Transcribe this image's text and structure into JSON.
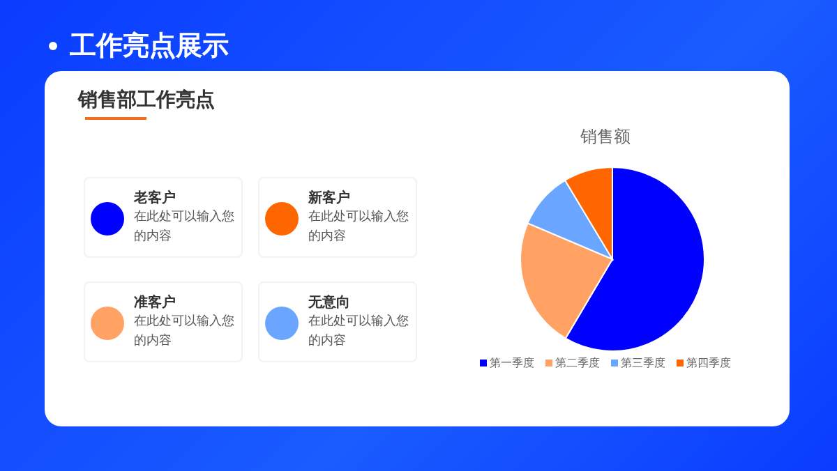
{
  "chart_data": {
    "type": "pie",
    "title": "销售额",
    "categories": [
      "第一季度",
      "第二季度",
      "第三季度",
      "第四季度"
    ],
    "values": [
      58.5,
      22.9,
      10,
      8.6
    ],
    "colors": [
      "#0000ff",
      "#ffa264",
      "#6aa5ff",
      "#ff6600"
    ],
    "legend": "bottom",
    "annotations": [
      "工作亮点展示",
      "销售部工作亮点",
      "老客户",
      "在此处可以输入您的内容",
      "新客户",
      "在此处可以输入您的内容",
      "准客户",
      "在此处可以输入您的内容",
      "无意向",
      "在此处可以输入您的内容"
    ]
  }
}
